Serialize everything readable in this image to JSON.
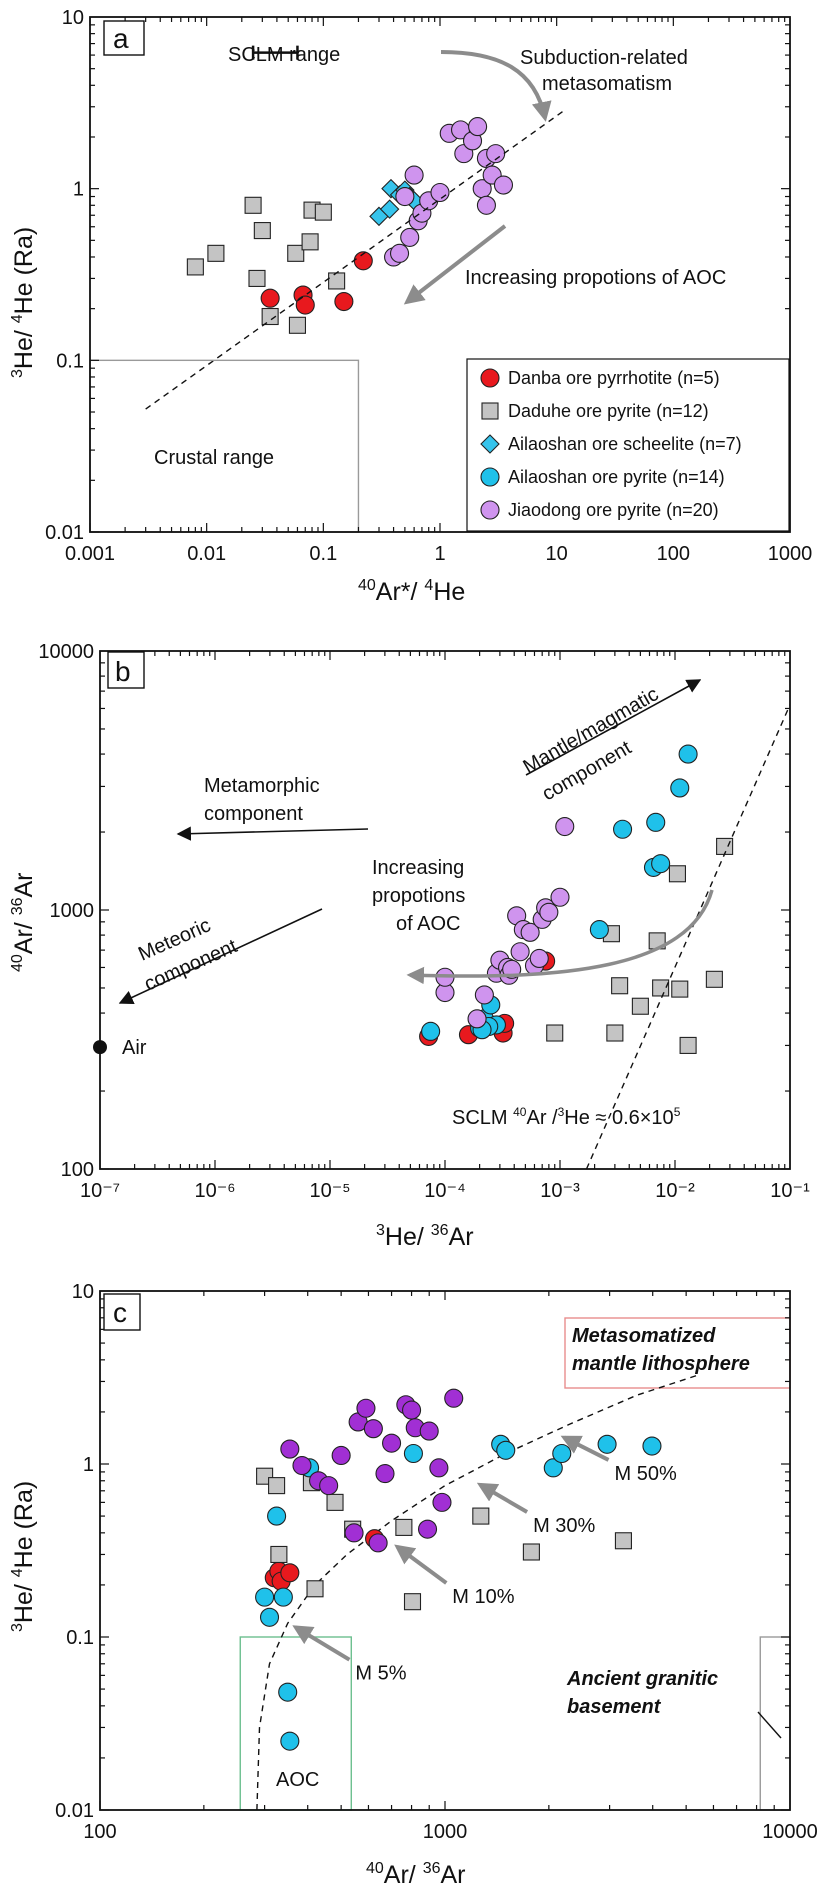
{
  "colors": {
    "danba": "#e8191e",
    "daduhe": "#c4c4c4",
    "ailao_scheelite": "#36c4ec",
    "ailao_pyrite": "#1fc1ea",
    "jiaodong_a": "#cf94ee",
    "jiaodong_c": "#a12fd4",
    "arrow": "#8c8c8c",
    "meta_box": "#e88d8d",
    "aoc_box": "#6cbf8f",
    "box_gray": "#9a9a9a"
  },
  "chart_data": [
    {
      "panel": "a",
      "type": "scatter",
      "xscale": "log",
      "yscale": "log",
      "xlim": [
        0.001,
        1000
      ],
      "ylim": [
        0.01,
        10
      ],
      "xlabel": "⁴⁰Ar*/ ⁴He",
      "ylabel": "³He/ ⁴He (Ra)",
      "xticks": [
        "0.001",
        "0.01",
        "0.1",
        "1",
        "10",
        "100",
        "1000"
      ],
      "yticks": [
        "0.01",
        "0.1",
        "1",
        "10"
      ],
      "legend_position": "bottom-right",
      "series": [
        {
          "name": "Danba ore pyrrhotite (n=5)",
          "marker": "circle",
          "color_key": "danba",
          "x": [
            0.035,
            0.067,
            0.07,
            0.15,
            0.22
          ],
          "y": [
            0.23,
            0.24,
            0.21,
            0.22,
            0.38
          ]
        },
        {
          "name": "Daduhe ore pyrite (n=12)",
          "marker": "square",
          "color_key": "daduhe",
          "x": [
            0.008,
            0.012,
            0.025,
            0.027,
            0.03,
            0.035,
            0.058,
            0.06,
            0.077,
            0.08,
            0.1,
            0.13
          ],
          "y": [
            0.35,
            0.42,
            0.8,
            0.3,
            0.57,
            0.18,
            0.42,
            0.16,
            0.49,
            0.75,
            0.73,
            0.29
          ]
        },
        {
          "name": "Ailaoshan ore scheelite (n=7)",
          "marker": "diamond",
          "color_key": "ailao_scheelite",
          "x": [
            0.3,
            0.37,
            0.38,
            0.45,
            0.5,
            0.55,
            0.6
          ],
          "y": [
            0.69,
            0.76,
            1.0,
            0.92,
            0.98,
            0.9,
            0.85
          ]
        },
        {
          "name": "Ailaoshan ore pyrite (n=14)",
          "marker": "circle",
          "color_key": "ailao_pyrite",
          "x": [],
          "y": []
        },
        {
          "name": "Jiaodong ore pyrite (n=20)",
          "marker": "circle",
          "color_key": "jiaodong_a",
          "x": [
            0.4,
            0.45,
            0.5,
            0.55,
            0.6,
            0.65,
            0.7,
            0.8,
            1.0,
            1.2,
            1.5,
            1.6,
            1.9,
            2.1,
            2.3,
            2.5,
            2.5,
            2.8,
            3.0,
            3.5
          ],
          "y": [
            0.4,
            0.42,
            0.9,
            0.52,
            1.2,
            0.65,
            0.72,
            0.85,
            0.95,
            2.1,
            2.2,
            1.6,
            1.9,
            2.3,
            1.0,
            0.8,
            1.5,
            1.2,
            1.6,
            1.05
          ]
        }
      ],
      "lines": [
        {
          "style": "dashed",
          "x": [
            0.003,
            12
          ],
          "y": [
            0.052,
            2.9
          ]
        }
      ],
      "annotations": {
        "sclm": "SCLM range",
        "subduction": "Subduction-related\nmetasomatism",
        "increasing": "Increasing propotions of AOC",
        "crustal": "Crustal range"
      },
      "sclm_range": {
        "x": [
          0.025,
          0.06
        ],
        "y": 6.2
      }
    },
    {
      "panel": "b",
      "type": "scatter",
      "xscale": "log",
      "yscale": "log",
      "xlim": [
        1e-07,
        0.1
      ],
      "ylim": [
        100,
        10000
      ],
      "xlabel": "³He/ ³⁶Ar",
      "ylabel": "⁴⁰Ar/ ³⁶Ar",
      "xticks": [
        "10⁻⁷",
        "10⁻⁶",
        "10⁻⁵",
        "10⁻⁴",
        "10⁻³",
        "10⁻²",
        "10⁻¹"
      ],
      "yticks": [
        "100",
        "1000",
        "10000"
      ],
      "series": [
        {
          "name": "Danba ore pyrrhotite",
          "marker": "circle",
          "color_key": "danba",
          "x": [
            7.2e-05,
            0.00016,
            0.00032,
            0.00033,
            0.00075
          ],
          "y": [
            325,
            330,
            335,
            365,
            635
          ]
        },
        {
          "name": "Daduhe ore pyrite",
          "marker": "square",
          "color_key": "daduhe",
          "x": [
            0.0009,
            0.0028,
            0.003,
            0.0033,
            0.005,
            0.007,
            0.0075,
            0.0105,
            0.011,
            0.013,
            0.022,
            0.027
          ],
          "y": [
            335,
            810,
            335,
            510,
            425,
            760,
            500,
            1380,
            495,
            300,
            540,
            1760
          ]
        },
        {
          "name": "Ailaoshan ore pyrite",
          "marker": "circle",
          "color_key": "ailao_pyrite",
          "x": [
            7.5e-05,
            0.0002,
            0.00022,
            0.00025,
            0.00028,
            0.0022,
            0.0035,
            0.0065,
            0.0068,
            0.0075,
            0.011,
            0.013,
            0.00024,
            0.00021
          ],
          "y": [
            340,
            350,
            380,
            430,
            360,
            840,
            2050,
            1460,
            2180,
            1510,
            2960,
            4000,
            355,
            345
          ]
        },
        {
          "name": "Jiaodong ore pyrite",
          "marker": "circle",
          "color_key": "jiaodong_a",
          "x": [
            0.0001,
            0.0001,
            0.00019,
            0.00022,
            0.00028,
            0.0003,
            0.00035,
            0.00036,
            0.00038,
            0.00042,
            0.00045,
            0.00048,
            0.00055,
            0.0006,
            0.00066,
            0.0007,
            0.00075,
            0.0008,
            0.001,
            0.0011
          ],
          "y": [
            480,
            550,
            380,
            470,
            570,
            640,
            600,
            560,
            590,
            950,
            690,
            840,
            820,
            610,
            650,
            920,
            1020,
            980,
            1120,
            2100
          ]
        }
      ],
      "lines": [
        {
          "style": "dashed",
          "x": [
            0.0017,
            0.1
          ],
          "y": [
            100,
            6200
          ]
        }
      ],
      "annotations": {
        "mantle": "Mantle/magmatic\ncomponent",
        "metamorphic": "Metamorphic\ncomponent",
        "meteoric": "Meteoric\ncomponent",
        "increasing": "Increasing\npropotions\nof AOC",
        "air": "Air",
        "sclm": "SCLM ⁴⁰Ar /³He ≈ 0.6×10⁵"
      },
      "air_point": {
        "x": 1e-07,
        "y": 295.5
      }
    },
    {
      "panel": "c",
      "type": "scatter",
      "xscale": "log",
      "yscale": "log",
      "xlim": [
        100,
        10000
      ],
      "ylim": [
        0.01,
        10
      ],
      "xlabel": "⁴⁰Ar/ ³⁶Ar",
      "ylabel": "³He/ ⁴He (Ra)",
      "xticks": [
        "100",
        "1000",
        "10000"
      ],
      "yticks": [
        "0.01",
        "0.1",
        "1",
        "10"
      ],
      "series": [
        {
          "name": "Danba ore pyrrhotite",
          "marker": "circle",
          "color_key": "danba",
          "x": [
            320,
            330,
            335,
            355,
            625
          ],
          "y": [
            0.22,
            0.24,
            0.21,
            0.235,
            0.37
          ]
        },
        {
          "name": "Daduhe ore pyrite",
          "marker": "square",
          "color_key": "daduhe",
          "x": [
            300,
            325,
            330,
            410,
            480,
            540,
            760,
            805,
            1270,
            1780,
            3290,
            420
          ],
          "y": [
            0.85,
            0.75,
            0.3,
            0.78,
            0.6,
            0.42,
            0.43,
            0.16,
            0.5,
            0.31,
            0.36,
            0.19
          ]
        },
        {
          "name": "Ailaoshan ore pyrite",
          "marker": "circle",
          "color_key": "ailao_pyrite",
          "x": [
            300,
            310,
            325,
            340,
            350,
            355,
            405,
            810,
            1450,
            1500,
            2060,
            2180,
            2950,
            3980
          ],
          "y": [
            0.17,
            0.13,
            0.5,
            0.17,
            0.048,
            0.025,
            0.95,
            1.15,
            1.3,
            1.2,
            0.95,
            1.15,
            1.3,
            1.27
          ]
        },
        {
          "name": "Jiaodong ore pyrite",
          "marker": "circle",
          "color_key": "jiaodong_c",
          "x": [
            355,
            385,
            430,
            460,
            500,
            545,
            560,
            590,
            620,
            640,
            670,
            700,
            770,
            800,
            820,
            890,
            900,
            960,
            980,
            1060
          ],
          "y": [
            1.22,
            0.98,
            0.8,
            0.75,
            1.12,
            0.4,
            1.75,
            2.1,
            1.6,
            0.35,
            0.88,
            1.32,
            2.2,
            2.05,
            1.62,
            0.42,
            1.55,
            0.95,
            0.6,
            2.4
          ]
        }
      ],
      "mixing_curve": {
        "style": "dashed",
        "x": [
          285,
          290,
          310,
          350,
          420,
          520,
          700,
          1000,
          1500,
          2300,
          3600,
          5500
        ],
        "y": [
          0.01,
          0.03,
          0.07,
          0.12,
          0.2,
          0.3,
          0.47,
          0.75,
          1.15,
          1.7,
          2.5,
          3.3
        ]
      },
      "mixing_labels": [
        {
          "label": "M 5%",
          "x": 550,
          "y": 0.063,
          "tip_x": 350,
          "tip_y": 0.12
        },
        {
          "label": "M 10%",
          "x": 1050,
          "y": 0.175,
          "tip_x": 690,
          "tip_y": 0.35
        },
        {
          "label": "M 30%",
          "x": 1800,
          "y": 0.45,
          "tip_x": 1200,
          "tip_y": 0.8
        },
        {
          "label": "M 50%",
          "x": 3100,
          "y": 0.9,
          "tip_x": 2100,
          "tip_y": 1.5
        }
      ],
      "annotations": {
        "meta": "Metasomatized\nmantle lithosphere",
        "ancient": "Ancient granitic\nbasement",
        "aoc": "AOC"
      }
    }
  ]
}
